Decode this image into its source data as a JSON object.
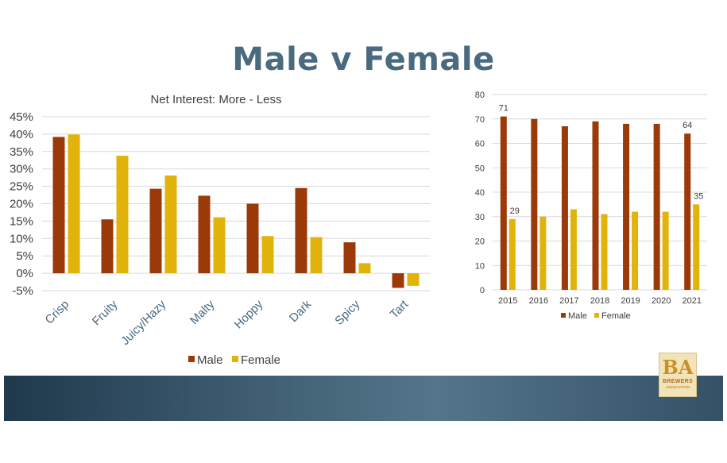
{
  "slide": {
    "title": "Male v Female"
  },
  "chart_data": [
    {
      "type": "bar",
      "title": "Net Interest: More - Less",
      "categories": [
        "Crisp",
        "Fruity",
        "Juicy/Hazy",
        "Malty",
        "Hoppy",
        "Dark",
        "Spicy",
        "Tart"
      ],
      "series": [
        {
          "name": "Male",
          "values": [
            39.2,
            15.5,
            24.3,
            22.3,
            20.0,
            24.5,
            8.9,
            -4.2
          ]
        },
        {
          "name": "Female",
          "values": [
            39.9,
            33.8,
            28.1,
            16.1,
            10.7,
            10.4,
            2.9,
            -3.6
          ]
        }
      ],
      "ylim": [
        -5,
        45
      ],
      "yticks": [
        "-5%",
        "0%",
        "5%",
        "10%",
        "15%",
        "20%",
        "25%",
        "30%",
        "35%",
        "40%",
        "45%"
      ],
      "xlabel": "",
      "ylabel": "",
      "legend": "bottom",
      "grid": true
    },
    {
      "type": "bar",
      "title": "",
      "categories": [
        "2015",
        "2016",
        "2017",
        "2018",
        "2019",
        "2020",
        "2021"
      ],
      "series": [
        {
          "name": "Male",
          "values": [
            71,
            70,
            67,
            69,
            68,
            68,
            64
          ]
        },
        {
          "name": "Female",
          "values": [
            29,
            30,
            33,
            31,
            32,
            32,
            35
          ]
        }
      ],
      "data_labels": [
        {
          "series": 0,
          "index": 0,
          "text": "71"
        },
        {
          "series": 1,
          "index": 0,
          "text": "29"
        },
        {
          "series": 0,
          "index": 6,
          "text": "64"
        },
        {
          "series": 1,
          "index": 6,
          "text": "35"
        }
      ],
      "ylim": [
        0,
        80
      ],
      "yticks": [
        "0",
        "10",
        "20",
        "30",
        "40",
        "50",
        "60",
        "70",
        "80"
      ],
      "xlabel": "",
      "ylabel": "",
      "legend": "bottom",
      "grid": true
    }
  ],
  "colors": {
    "male": "#9b3a08",
    "female": "#e2b30b",
    "title": "#4a6a80",
    "grid": "#d9d9d9",
    "axis_text": "#404040"
  },
  "logo": {
    "letters": "BA",
    "line1": "BREWERS",
    "line2": "ASSOCIATION"
  }
}
